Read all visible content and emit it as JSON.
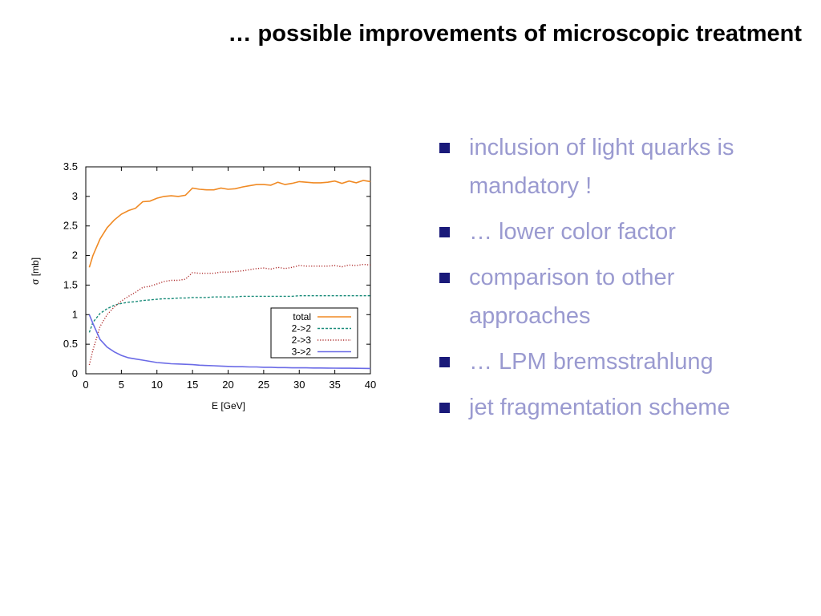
{
  "slide": {
    "title": "… possible improvements of microscopic treatment",
    "bullets": [
      "inclusion of light quarks is mandatory !",
      "… lower color factor",
      "comparison to other approaches",
      "… LPM bremsstrahlung",
      "jet fragmentation scheme"
    ],
    "bullet_color": "#9a9ad0",
    "marker_color": "#1a1a7a"
  },
  "chart_data": {
    "type": "line",
    "xlabel": "E [GeV]",
    "ylabel": "σ [mb]",
    "xlim": [
      0,
      40
    ],
    "ylim": [
      0,
      3.5
    ],
    "xticks": [
      0,
      5,
      10,
      15,
      20,
      25,
      30,
      35,
      40
    ],
    "yticks": [
      0,
      0.5,
      1,
      1.5,
      2,
      2.5,
      3,
      3.5
    ],
    "grid": false,
    "legend_position": "bottom-right",
    "x": [
      0.5,
      1,
      2,
      3,
      4,
      5,
      6,
      7,
      8,
      9,
      10,
      11,
      12,
      13,
      14,
      15,
      16,
      17,
      18,
      19,
      20,
      21,
      22,
      23,
      24,
      25,
      26,
      27,
      28,
      29,
      30,
      31,
      32,
      33,
      34,
      35,
      36,
      37,
      38,
      39,
      40
    ],
    "series": [
      {
        "name": "total",
        "color": "#f08a24",
        "style": "solid",
        "values": [
          1.8,
          2.0,
          2.28,
          2.47,
          2.6,
          2.7,
          2.76,
          2.8,
          2.91,
          2.92,
          2.97,
          3.0,
          3.01,
          3.0,
          3.02,
          3.14,
          3.12,
          3.11,
          3.11,
          3.14,
          3.12,
          3.13,
          3.16,
          3.18,
          3.2,
          3.2,
          3.19,
          3.24,
          3.2,
          3.22,
          3.25,
          3.24,
          3.23,
          3.23,
          3.24,
          3.26,
          3.22,
          3.26,
          3.23,
          3.27,
          3.25
        ]
      },
      {
        "name": "2->2",
        "color": "#1a8c7a",
        "style": "dashed",
        "values": [
          0.7,
          0.87,
          1.02,
          1.1,
          1.16,
          1.19,
          1.21,
          1.22,
          1.24,
          1.25,
          1.26,
          1.27,
          1.27,
          1.28,
          1.28,
          1.29,
          1.29,
          1.29,
          1.3,
          1.3,
          1.3,
          1.3,
          1.31,
          1.31,
          1.31,
          1.31,
          1.31,
          1.31,
          1.31,
          1.31,
          1.32,
          1.32,
          1.32,
          1.32,
          1.32,
          1.32,
          1.32,
          1.32,
          1.32,
          1.32,
          1.32
        ]
      },
      {
        "name": "2->3",
        "color": "#b03030",
        "style": "dotted",
        "values": [
          0.15,
          0.4,
          0.8,
          1.0,
          1.13,
          1.23,
          1.31,
          1.38,
          1.46,
          1.48,
          1.52,
          1.56,
          1.58,
          1.58,
          1.6,
          1.71,
          1.7,
          1.7,
          1.7,
          1.72,
          1.72,
          1.73,
          1.74,
          1.76,
          1.78,
          1.79,
          1.77,
          1.8,
          1.78,
          1.8,
          1.83,
          1.82,
          1.82,
          1.82,
          1.82,
          1.83,
          1.81,
          1.84,
          1.83,
          1.85,
          1.84
        ]
      },
      {
        "name": "3->2",
        "color": "#6a6ae6",
        "style": "solid",
        "values": [
          1.0,
          0.85,
          0.58,
          0.45,
          0.37,
          0.31,
          0.27,
          0.25,
          0.23,
          0.21,
          0.19,
          0.18,
          0.17,
          0.165,
          0.16,
          0.155,
          0.145,
          0.14,
          0.135,
          0.13,
          0.125,
          0.12,
          0.12,
          0.115,
          0.115,
          0.11,
          0.11,
          0.105,
          0.105,
          0.1,
          0.1,
          0.1,
          0.098,
          0.097,
          0.096,
          0.095,
          0.094,
          0.093,
          0.092,
          0.091,
          0.09
        ]
      }
    ]
  }
}
